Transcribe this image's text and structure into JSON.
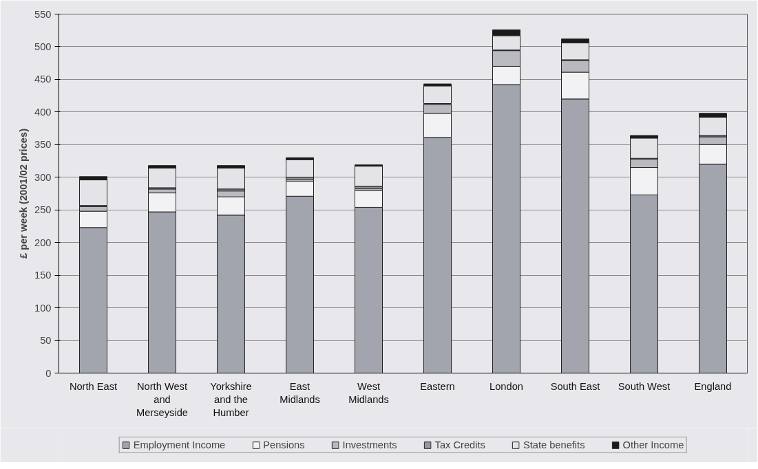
{
  "chart_data": {
    "type": "bar",
    "stacked": true,
    "ylabel": "£ per week (2001/02 prices)",
    "categories": [
      "North East",
      "North West\nand\nMerseyside",
      "Yorkshire\nand the\nHumber",
      "East\nMidlands",
      "West\nMidlands",
      "Eastern",
      "London",
      "South East",
      "South West",
      "England"
    ],
    "series": [
      {
        "name": "Employment Income",
        "color": "#a3a5ae",
        "values": [
          223,
          247,
          242,
          271,
          254,
          361,
          442,
          420,
          273,
          320
        ]
      },
      {
        "name": "Pensions",
        "color": "#f2f2f4",
        "values": [
          25,
          29,
          28,
          23,
          26,
          37,
          28,
          41,
          42,
          30
        ]
      },
      {
        "name": "Investments",
        "color": "#b9babf",
        "values": [
          7,
          6,
          9,
          3,
          3,
          13,
          24,
          18,
          13,
          12
        ]
      },
      {
        "name": "Tax Credits",
        "color": "#96979e",
        "values": [
          2,
          2,
          3,
          3,
          3,
          2,
          1,
          1,
          1,
          2
        ]
      },
      {
        "name": "State benefits",
        "color": "#e4e4e8",
        "values": [
          39,
          30,
          32,
          27,
          31,
          27,
          22,
          26,
          31,
          28
        ]
      },
      {
        "name": "Other Income",
        "color": "#1a1a1a",
        "values": [
          5,
          4,
          4,
          3,
          2,
          3,
          9,
          6,
          4,
          6
        ]
      }
    ],
    "ylim": [
      0,
      550
    ],
    "yticks": [
      0,
      50,
      100,
      150,
      200,
      250,
      300,
      350,
      400,
      450,
      500,
      550
    ],
    "grid": "y",
    "legend": "bottom"
  }
}
